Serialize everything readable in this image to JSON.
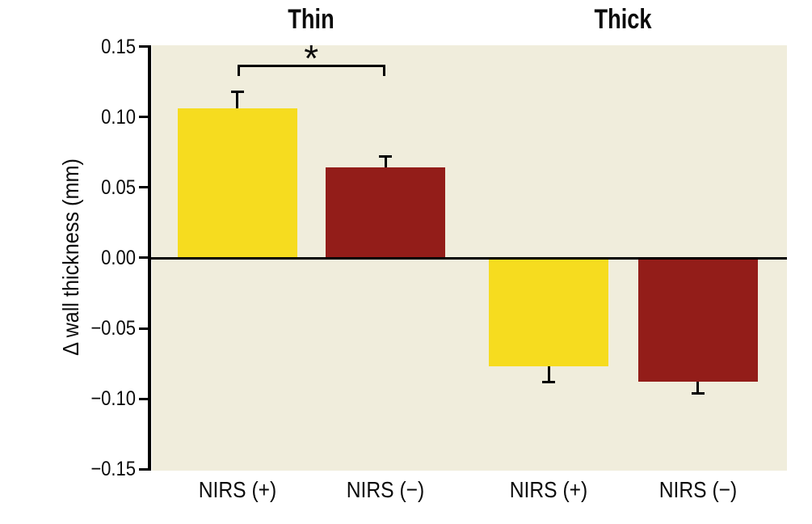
{
  "figure": {
    "background_color": "#ffffff",
    "plot_background_color": "#f0eddc"
  },
  "chart_data": {
    "type": "bar",
    "title": "",
    "xlabel": "",
    "ylabel": "Δ wall thickness (mm)",
    "ylim": [
      -0.15,
      0.15
    ],
    "ytick_step": 0.05,
    "grid": false,
    "legend_position": "none",
    "yticks": [
      {
        "value": 0.15,
        "label": "0.15"
      },
      {
        "value": 0.1,
        "label": "0.10"
      },
      {
        "value": 0.05,
        "label": "0.05"
      },
      {
        "value": 0.0,
        "label": "0.00"
      },
      {
        "value": -0.05,
        "label": "−0.05"
      },
      {
        "value": -0.1,
        "label": "−0.10"
      },
      {
        "value": -0.15,
        "label": "−0.15"
      }
    ],
    "groups": [
      {
        "label": "Thin",
        "bars": [
          {
            "category": "NIRS (+)",
            "value": 0.106,
            "error": 0.013,
            "color": "#f6dc1f"
          },
          {
            "category": "NIRS (−)",
            "value": 0.064,
            "error": 0.009,
            "color": "#931d19"
          }
        ]
      },
      {
        "label": "Thick",
        "bars": [
          {
            "category": "NIRS (+)",
            "value": -0.077,
            "error": 0.012,
            "color": "#f6dc1f"
          },
          {
            "category": "NIRS (−)",
            "value": -0.088,
            "error": 0.009,
            "color": "#931d19"
          }
        ]
      }
    ],
    "significance": {
      "label": "*",
      "between": [
        "Thin NIRS (+)",
        "Thin NIRS (−)"
      ],
      "bracket_value": 0.137
    },
    "colors": {
      "nirs_positive_bar": "#f6dc1f",
      "nirs_negative_bar": "#931d19",
      "plot_background": "#f0eddc",
      "axis_and_text": "#000000"
    }
  }
}
